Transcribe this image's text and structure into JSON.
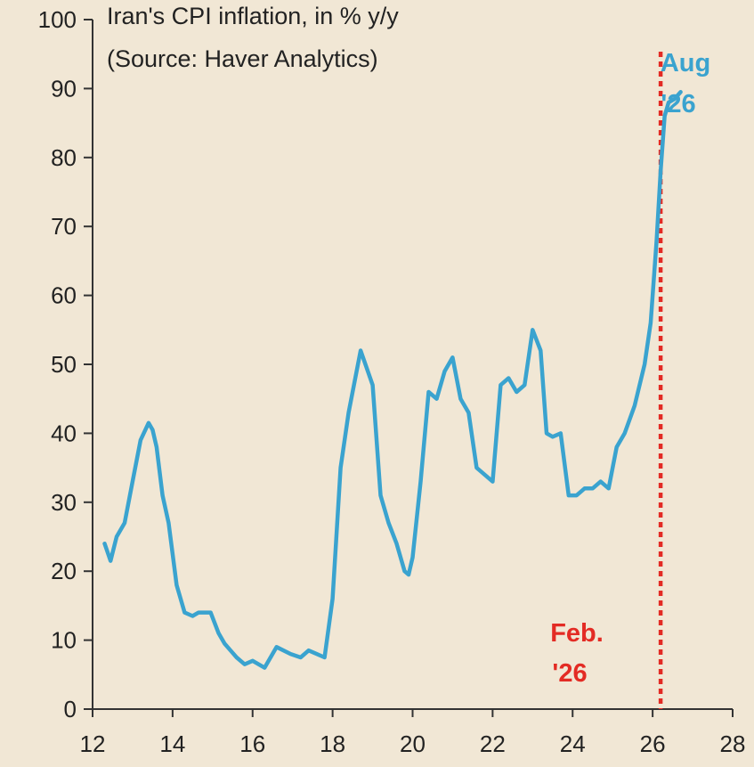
{
  "chart_data": {
    "type": "line",
    "title_lines": [
      "Iran's CPI inflation, in % y/y",
      "(Source: Haver Analytics)"
    ],
    "xlabel": "",
    "ylabel": "",
    "xlim": [
      12,
      28
    ],
    "ylim": [
      0,
      100
    ],
    "x_ticks": [
      12,
      14,
      16,
      18,
      20,
      22,
      24,
      26,
      28
    ],
    "y_ticks": [
      0,
      10,
      20,
      30,
      40,
      50,
      60,
      70,
      80,
      90,
      100
    ],
    "grid": false,
    "colors": {
      "line": "#3aa3cf",
      "marker": "#e32b24",
      "background": "#f1e7d5",
      "axis": "#333333"
    },
    "series": [
      {
        "x": [
          12.3,
          12.45,
          12.6,
          12.8,
          13.0,
          13.2,
          13.4,
          13.5,
          13.6,
          13.75,
          13.9,
          14.1,
          14.3,
          14.5,
          14.65,
          14.8,
          14.95,
          15.15,
          15.3,
          15.45,
          15.6,
          15.8,
          16.0,
          16.3,
          16.6,
          16.95,
          17.2,
          17.4,
          17.6,
          17.8,
          18.0,
          18.2,
          18.4,
          18.7,
          19.0,
          19.2,
          19.4,
          19.6,
          19.8,
          19.9,
          20.0,
          20.2,
          20.4,
          20.6,
          20.8,
          21.0,
          21.2,
          21.4,
          21.6,
          21.8,
          22.0,
          22.2,
          22.4,
          22.6,
          22.8,
          23.0,
          23.2,
          23.35,
          23.5,
          23.7,
          23.9,
          24.1,
          24.3,
          24.5,
          24.7,
          24.9,
          25.1,
          25.3,
          25.55,
          25.8,
          25.95,
          26.1,
          26.2,
          26.3,
          26.4,
          26.55,
          26.7
        ],
        "values": [
          24,
          21.5,
          25,
          27,
          33,
          39,
          41.5,
          40.5,
          38,
          31,
          27,
          18,
          14,
          13.5,
          14,
          14,
          14,
          11,
          9.5,
          8.5,
          7.5,
          6.5,
          7,
          6,
          9,
          8,
          7.5,
          8.5,
          8,
          7.5,
          16,
          35,
          43,
          52,
          47,
          31,
          27,
          24,
          20,
          19.5,
          22,
          33,
          46,
          45,
          49,
          51,
          45,
          43,
          35,
          34,
          33,
          47,
          48,
          46,
          47,
          55,
          52,
          40,
          39.5,
          40,
          31,
          31,
          32,
          32,
          33,
          32,
          38,
          40,
          44,
          50,
          56,
          68,
          78,
          86,
          88,
          88.5,
          89.5
        ]
      }
    ],
    "annotations": [
      {
        "text_lines": [
          "Feb.",
          "'26"
        ],
        "x": 26.2,
        "color": "#e32b24"
      },
      {
        "text_lines": [
          "Aug",
          "'26"
        ],
        "x": 26.7,
        "color": "#3aa3cf"
      }
    ]
  }
}
